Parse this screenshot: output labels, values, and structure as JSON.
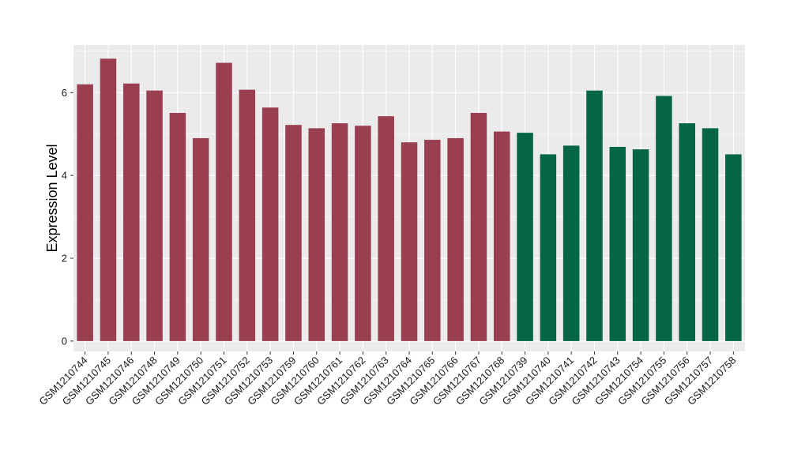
{
  "chart_data": {
    "type": "bar",
    "xlabel": "",
    "ylabel": "Expression Level",
    "ylim": [
      -0.25,
      7.15
    ],
    "yticks": [
      0,
      2,
      4,
      6
    ],
    "grid": true,
    "legend": "none",
    "categories": [
      "GSM1210744",
      "GSM1210745",
      "GSM1210746",
      "GSM1210748",
      "GSM1210749",
      "GSM1210750",
      "GSM1210751",
      "GSM1210752",
      "GSM1210753",
      "GSM1210759",
      "GSM1210760",
      "GSM1210761",
      "GSM1210762",
      "GSM1210763",
      "GSM1210764",
      "GSM1210765",
      "GSM1210766",
      "GSM1210767",
      "GSM1210768",
      "GSM1210739",
      "GSM1210740",
      "GSM1210741",
      "GSM1210742",
      "GSM1210743",
      "GSM1210754",
      "GSM1210755",
      "GSM1210756",
      "GSM1210757",
      "GSM1210758"
    ],
    "values": [
      6.2,
      6.82,
      6.22,
      6.05,
      5.51,
      4.9,
      6.72,
      6.07,
      5.64,
      5.22,
      5.14,
      5.26,
      5.2,
      5.43,
      4.8,
      4.86,
      4.9,
      5.51,
      5.06,
      5.03,
      4.51,
      4.72,
      6.05,
      4.69,
      4.63,
      5.92,
      5.26,
      5.14,
      4.51
    ],
    "bar_colors": [
      "#9a3f50",
      "#9a3f50",
      "#9a3f50",
      "#9a3f50",
      "#9a3f50",
      "#9a3f50",
      "#9a3f50",
      "#9a3f50",
      "#9a3f50",
      "#9a3f50",
      "#9a3f50",
      "#9a3f50",
      "#9a3f50",
      "#9a3f50",
      "#9a3f50",
      "#9a3f50",
      "#9a3f50",
      "#9a3f50",
      "#9a3f50",
      "#046644",
      "#046644",
      "#046644",
      "#046644",
      "#046644",
      "#046644",
      "#046644",
      "#046644",
      "#046644",
      "#046644"
    ],
    "colors": {
      "panel_background": "#ebebeb",
      "grid": "#ffffff",
      "group_1": "#9a3f50",
      "group_2": "#046644"
    }
  }
}
